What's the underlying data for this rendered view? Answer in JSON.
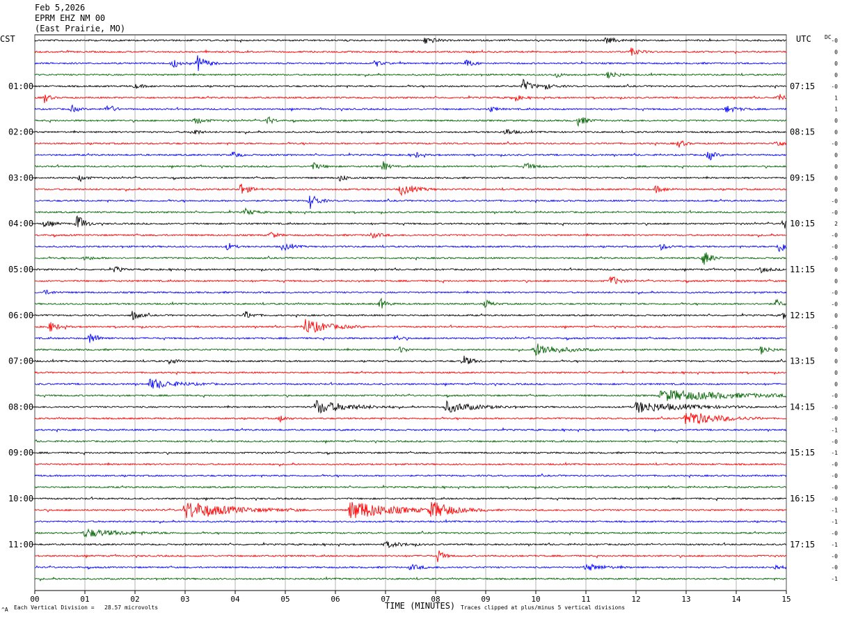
{
  "header": {
    "date": "Feb 5,2026",
    "station": "EPRM EHZ NM 00",
    "location": "(East Prairie, MO)"
  },
  "left_tz": "CST",
  "right_tz": "UTC",
  "dc_label": "DC",
  "footer": {
    "left_note": "Each Vertical Division =   28.57 microvolts",
    "axis_title": "TIME (MINUTES)",
    "right_note": "Traces clipped at plus/minus 5 vertical divisions",
    "corner_mark": "^A"
  },
  "colors": {
    "trace_cycle": [
      "#000000",
      "#ff0000",
      "#0000ff",
      "#006400"
    ],
    "grid": "#808080",
    "background": "#ffffff"
  },
  "chart_data": {
    "type": "line",
    "title": "EPRM EHZ NM 00",
    "xlabel": "TIME (MINUTES)",
    "ylabel": "",
    "xlim": [
      0,
      15
    ],
    "x_ticks": [
      "00",
      "01",
      "02",
      "03",
      "04",
      "05",
      "06",
      "07",
      "08",
      "09",
      "10",
      "11",
      "12",
      "13",
      "14",
      "15"
    ],
    "trace_count": 48,
    "minutes_per_trace": 15,
    "grid": true,
    "left_time_labels": [
      "01:00",
      "02:00",
      "03:00",
      "04:00",
      "05:00",
      "06:00",
      "07:00",
      "08:00",
      "09:00",
      "10:00",
      "11:00"
    ],
    "right_time_labels": [
      "07:15",
      "08:15",
      "09:15",
      "10:15",
      "11:15",
      "12:15",
      "13:15",
      "14:15",
      "15:15",
      "16:15",
      "17:15"
    ],
    "dc_offsets": [
      "-0",
      "0",
      "0",
      "0",
      "-0",
      "1",
      "1",
      "0",
      "0",
      "-0",
      "0",
      "0",
      "0",
      "0",
      "-0",
      "-0",
      "2",
      "-0",
      "-0",
      "-0",
      "0",
      "0",
      "-0",
      "-0",
      "0",
      "-0",
      "0",
      "0",
      "0",
      "0",
      "0",
      "-0",
      "-0",
      "-0",
      "-1",
      "-0",
      "-1",
      "-0",
      "-0",
      "-0",
      "-0",
      "-1",
      "-1",
      "-0",
      "-1",
      "-0",
      "-0",
      "-1"
    ],
    "vertical_scale": "Each Vertical Division = 28.57 microvolts",
    "clipping": "Traces clipped at plus/minus 5 vertical divisions",
    "events": [
      {
        "trace": 0,
        "minute": 7.8,
        "amp": 6,
        "dur": 0.3
      },
      {
        "trace": 0,
        "minute": 11.4,
        "amp": 4,
        "dur": 0.4
      },
      {
        "trace": 1,
        "minute": 11.9,
        "amp": 5,
        "dur": 0.3
      },
      {
        "trace": 2,
        "minute": 2.75,
        "amp": 8,
        "dur": 0.2
      },
      {
        "trace": 2,
        "minute": 3.25,
        "amp": 12,
        "dur": 0.3
      },
      {
        "trace": 2,
        "minute": 6.8,
        "amp": 5,
        "dur": 0.2
      },
      {
        "trace": 2,
        "minute": 8.6,
        "amp": 5,
        "dur": 0.3
      },
      {
        "trace": 3,
        "minute": 11.45,
        "amp": 6,
        "dur": 0.3
      },
      {
        "trace": 3,
        "minute": 10.4,
        "amp": 4,
        "dur": 0.2
      },
      {
        "trace": 4,
        "minute": 9.75,
        "amp": 9,
        "dur": 0.3
      },
      {
        "trace": 4,
        "minute": 10.2,
        "amp": 4,
        "dur": 0.3
      },
      {
        "trace": 4,
        "minute": 2.0,
        "amp": 3,
        "dur": 0.3
      },
      {
        "trace": 5,
        "minute": 0.2,
        "amp": 8,
        "dur": 0.15
      },
      {
        "trace": 5,
        "minute": 9.55,
        "amp": 7,
        "dur": 0.2
      },
      {
        "trace": 5,
        "minute": 14.85,
        "amp": 8,
        "dur": 0.15
      },
      {
        "trace": 6,
        "minute": 1.45,
        "amp": 9,
        "dur": 0.2
      },
      {
        "trace": 6,
        "minute": 0.75,
        "amp": 5,
        "dur": 0.2
      },
      {
        "trace": 6,
        "minute": 13.8,
        "amp": 5,
        "dur": 0.4
      },
      {
        "trace": 6,
        "minute": 9.1,
        "amp": 4,
        "dur": 0.2
      },
      {
        "trace": 7,
        "minute": 3.2,
        "amp": 5,
        "dur": 0.3
      },
      {
        "trace": 7,
        "minute": 4.65,
        "amp": 6,
        "dur": 0.2
      },
      {
        "trace": 7,
        "minute": 10.85,
        "amp": 7,
        "dur": 0.3
      },
      {
        "trace": 8,
        "minute": 3.15,
        "amp": 6,
        "dur": 0.2
      },
      {
        "trace": 8,
        "minute": 9.4,
        "amp": 5,
        "dur": 0.3
      },
      {
        "trace": 9,
        "minute": 12.85,
        "amp": 6,
        "dur": 0.2
      },
      {
        "trace": 9,
        "minute": 14.8,
        "amp": 6,
        "dur": 0.2
      },
      {
        "trace": 10,
        "minute": 3.95,
        "amp": 6,
        "dur": 0.2
      },
      {
        "trace": 10,
        "minute": 13.45,
        "amp": 9,
        "dur": 0.2
      },
      {
        "trace": 10,
        "minute": 7.6,
        "amp": 4,
        "dur": 0.2
      },
      {
        "trace": 11,
        "minute": 6.95,
        "amp": 7,
        "dur": 0.2
      },
      {
        "trace": 11,
        "minute": 5.55,
        "amp": 5,
        "dur": 0.3
      },
      {
        "trace": 11,
        "minute": 9.8,
        "amp": 5,
        "dur": 0.3
      },
      {
        "trace": 12,
        "minute": 6.1,
        "amp": 6,
        "dur": 0.2
      },
      {
        "trace": 12,
        "minute": 0.9,
        "amp": 5,
        "dur": 0.2
      },
      {
        "trace": 13,
        "minute": 4.1,
        "amp": 9,
        "dur": 0.3
      },
      {
        "trace": 13,
        "minute": 7.3,
        "amp": 8,
        "dur": 0.5
      },
      {
        "trace": 13,
        "minute": 12.4,
        "amp": 5,
        "dur": 0.3
      },
      {
        "trace": 14,
        "minute": 5.5,
        "amp": 12,
        "dur": 0.25
      },
      {
        "trace": 15,
        "minute": 4.2,
        "amp": 5,
        "dur": 0.3
      },
      {
        "trace": 16,
        "minute": 0.85,
        "amp": 14,
        "dur": 0.25
      },
      {
        "trace": 16,
        "minute": 0.2,
        "amp": 5,
        "dur": 0.3
      },
      {
        "trace": 16,
        "minute": 14.95,
        "amp": 9,
        "dur": 0.1
      },
      {
        "trace": 17,
        "minute": 4.7,
        "amp": 6,
        "dur": 0.2
      },
      {
        "trace": 17,
        "minute": 6.7,
        "amp": 5,
        "dur": 0.3
      },
      {
        "trace": 18,
        "minute": 4.95,
        "amp": 6,
        "dur": 0.3
      },
      {
        "trace": 18,
        "minute": 3.85,
        "amp": 6,
        "dur": 0.2
      },
      {
        "trace": 18,
        "minute": 14.85,
        "amp": 9,
        "dur": 0.3
      },
      {
        "trace": 18,
        "minute": 12.5,
        "amp": 4,
        "dur": 0.3
      },
      {
        "trace": 19,
        "minute": 13.35,
        "amp": 12,
        "dur": 0.25
      },
      {
        "trace": 19,
        "minute": 1.0,
        "amp": 3,
        "dur": 0.3
      },
      {
        "trace": 20,
        "minute": 1.6,
        "amp": 5,
        "dur": 0.2
      },
      {
        "trace": 20,
        "minute": 14.5,
        "amp": 4,
        "dur": 0.3
      },
      {
        "trace": 21,
        "minute": 11.5,
        "amp": 8,
        "dur": 0.25
      },
      {
        "trace": 22,
        "minute": 0.2,
        "amp": 3,
        "dur": 0.3
      },
      {
        "trace": 23,
        "minute": 6.9,
        "amp": 8,
        "dur": 0.2
      },
      {
        "trace": 23,
        "minute": 9.0,
        "amp": 6,
        "dur": 0.2
      },
      {
        "trace": 23,
        "minute": 14.8,
        "amp": 6,
        "dur": 0.2
      },
      {
        "trace": 24,
        "minute": 1.95,
        "amp": 7,
        "dur": 0.25
      },
      {
        "trace": 24,
        "minute": 4.2,
        "amp": 6,
        "dur": 0.25
      },
      {
        "trace": 24,
        "minute": 14.95,
        "amp": 6,
        "dur": 0.1
      },
      {
        "trace": 25,
        "minute": 5.4,
        "amp": 11,
        "dur": 0.8
      },
      {
        "trace": 25,
        "minute": 0.3,
        "amp": 7,
        "dur": 0.3
      },
      {
        "trace": 26,
        "minute": 1.1,
        "amp": 8,
        "dur": 0.3
      },
      {
        "trace": 26,
        "minute": 7.2,
        "amp": 4,
        "dur": 0.2
      },
      {
        "trace": 27,
        "minute": 10.0,
        "amp": 9,
        "dur": 0.9
      },
      {
        "trace": 27,
        "minute": 14.5,
        "amp": 6,
        "dur": 0.3
      },
      {
        "trace": 27,
        "minute": 7.3,
        "amp": 5,
        "dur": 0.2
      },
      {
        "trace": 28,
        "minute": 8.55,
        "amp": 8,
        "dur": 0.3
      },
      {
        "trace": 28,
        "minute": 2.7,
        "amp": 5,
        "dur": 0.2
      },
      {
        "trace": 30,
        "minute": 2.3,
        "amp": 7,
        "dur": 0.9
      },
      {
        "trace": 31,
        "minute": 12.5,
        "amp": 8,
        "dur": 2.6
      },
      {
        "trace": 32,
        "minute": 5.6,
        "amp": 10,
        "dur": 1.1
      },
      {
        "trace": 32,
        "minute": 8.2,
        "amp": 8,
        "dur": 1.0
      },
      {
        "trace": 32,
        "minute": 12.0,
        "amp": 8,
        "dur": 1.6
      },
      {
        "trace": 33,
        "minute": 13.0,
        "amp": 11,
        "dur": 1.1
      },
      {
        "trace": 33,
        "minute": 4.9,
        "amp": 5,
        "dur": 0.2
      },
      {
        "trace": 41,
        "minute": 3.0,
        "amp": 13,
        "dur": 1.6
      },
      {
        "trace": 41,
        "minute": 6.3,
        "amp": 15,
        "dur": 1.4
      },
      {
        "trace": 41,
        "minute": 7.9,
        "amp": 12,
        "dur": 0.8
      },
      {
        "trace": 43,
        "minute": 1.0,
        "amp": 6,
        "dur": 1.2
      },
      {
        "trace": 44,
        "minute": 7.0,
        "amp": 4,
        "dur": 0.6
      },
      {
        "trace": 45,
        "minute": 8.05,
        "amp": 9,
        "dur": 0.2
      },
      {
        "trace": 46,
        "minute": 11.0,
        "amp": 5,
        "dur": 0.6
      },
      {
        "trace": 46,
        "minute": 7.5,
        "amp": 4,
        "dur": 0.4
      },
      {
        "trace": 46,
        "minute": 14.75,
        "amp": 4,
        "dur": 0.3
      }
    ]
  }
}
